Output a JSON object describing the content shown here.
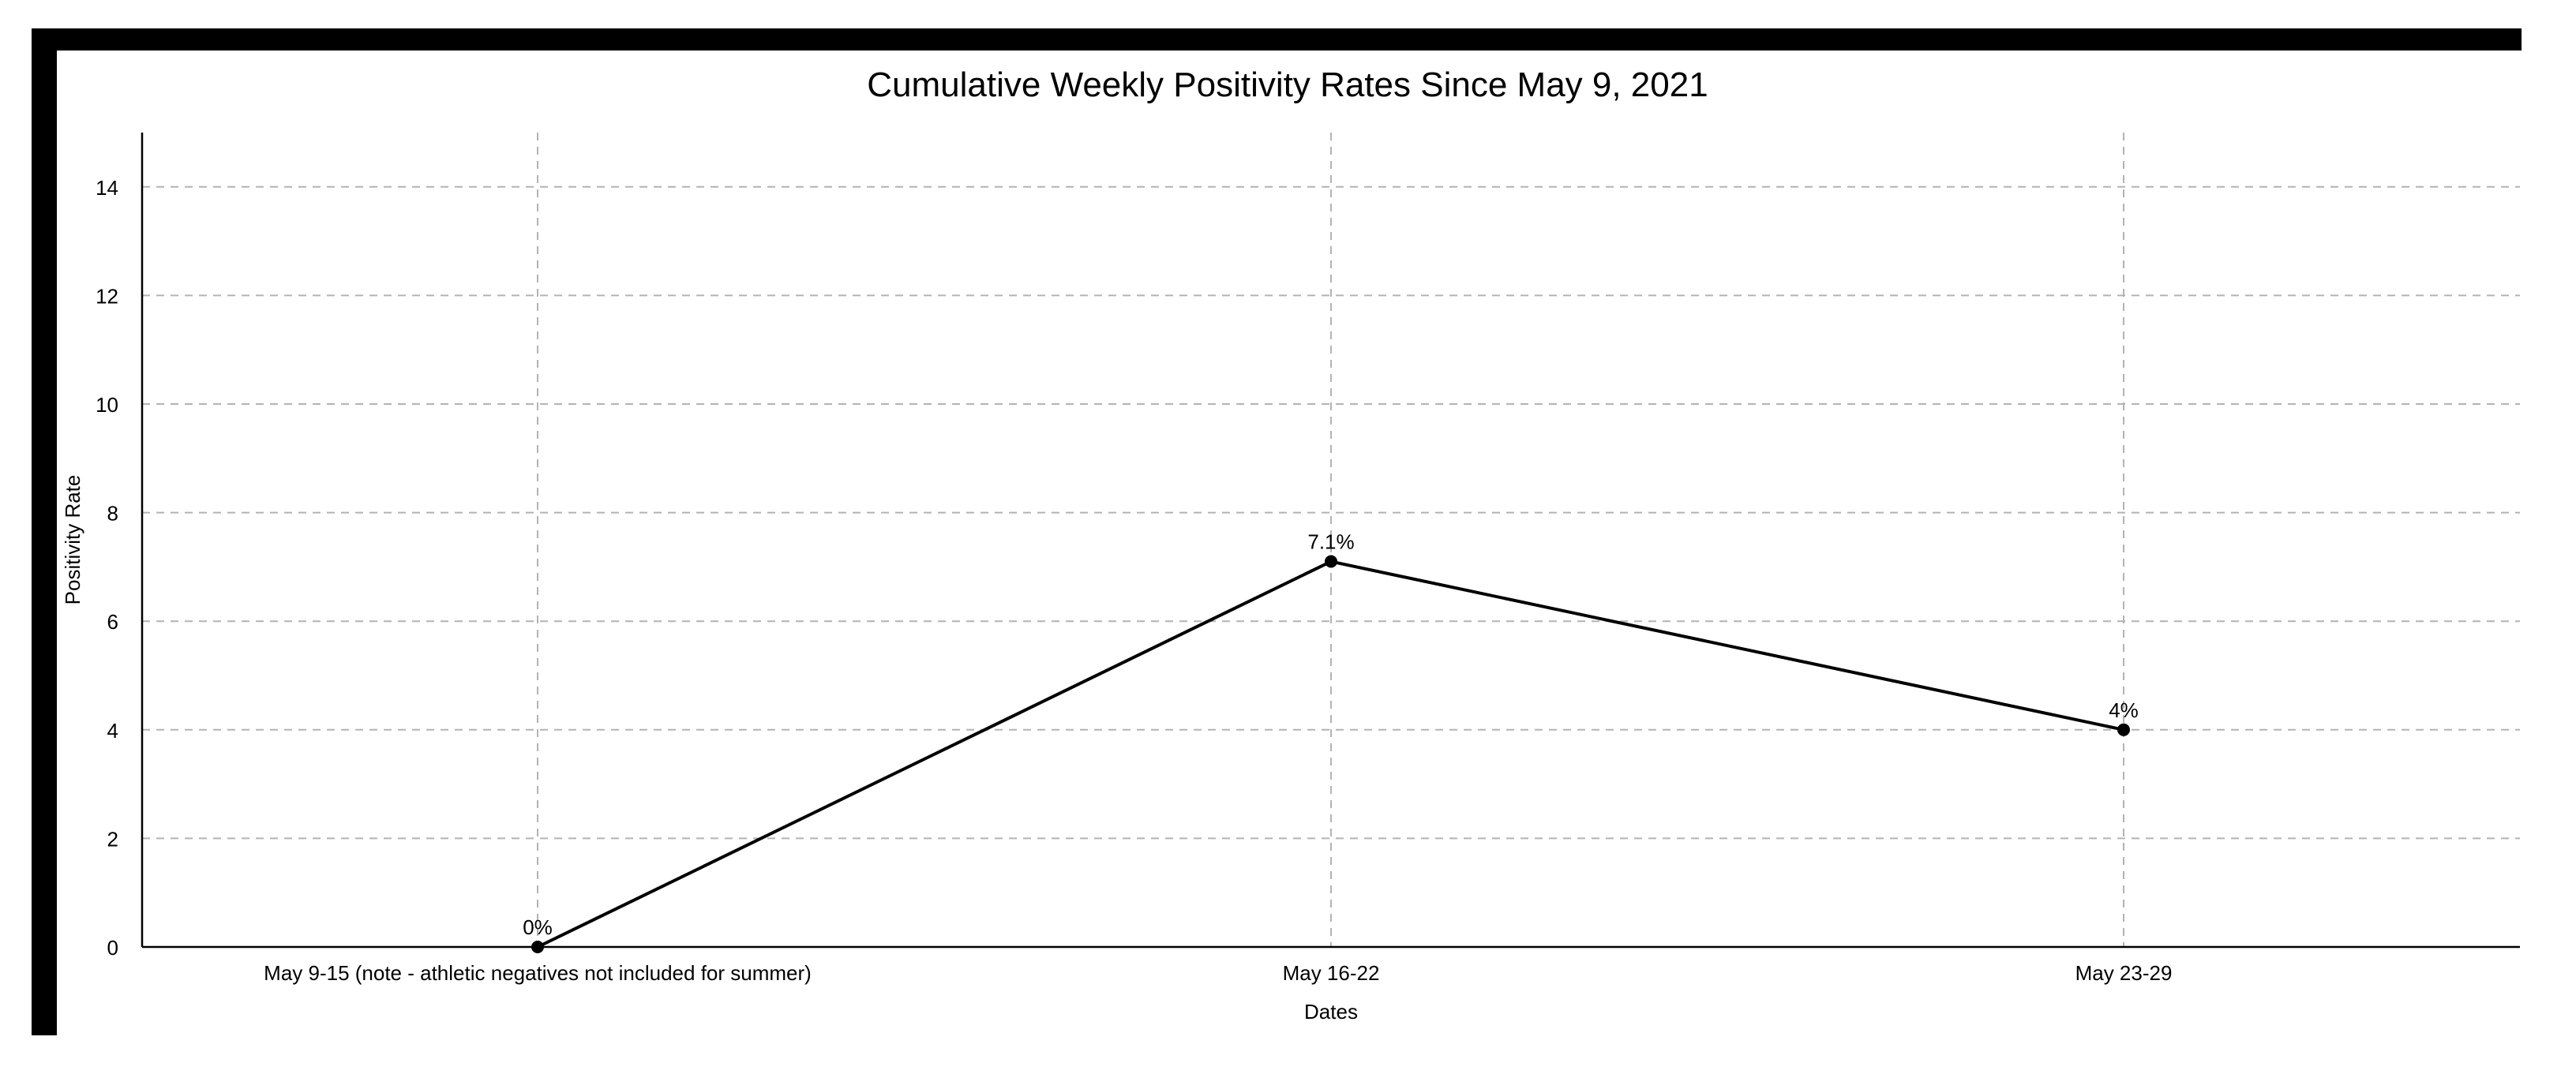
{
  "colors": {
    "background": "#ffffff",
    "frame": "#000000",
    "line": "#000000",
    "grid": "#b3b3b3",
    "text": "#000000"
  },
  "chart_data": {
    "type": "line",
    "title": "Cumulative Weekly Positivity Rates Since May 9, 2021",
    "xlabel": "Dates",
    "ylabel": "Positivity Rate",
    "categories": [
      "May 9-15 (note - athletic negatives not included for summer)",
      "May 16-22",
      "May 23-29"
    ],
    "values": [
      0,
      7.1,
      4
    ],
    "data_labels": [
      "0%",
      "7.1%",
      "4%"
    ],
    "ylim": [
      0,
      15
    ],
    "yticks": [
      0,
      2,
      4,
      6,
      8,
      10,
      12,
      14
    ],
    "ytick_labels": [
      "0",
      "2",
      "4",
      "6",
      "8",
      "10",
      "12",
      "14"
    ],
    "grid": true,
    "grid_style": "dashed",
    "legend": "none"
  }
}
